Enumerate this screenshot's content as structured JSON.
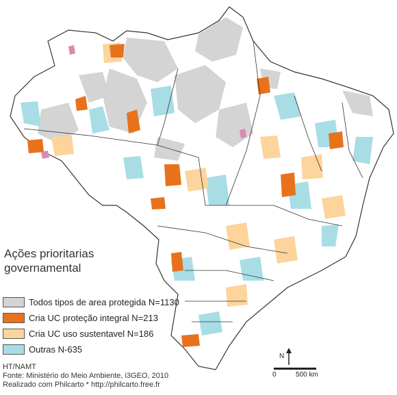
{
  "legend": {
    "title_line1": "Ações prioritarias",
    "title_line2": "governamental",
    "items": [
      {
        "label": "Todos tipos de area protegida N=1130",
        "color": "#d4d4d4"
      },
      {
        "label": "Cria UC proteção integral N=213",
        "color": "#e8721c"
      },
      {
        "label": "Cria UC uso sustentavel N=186",
        "color": "#fcd49c"
      },
      {
        "label": "Outras N-635",
        "color": "#a8dde6"
      }
    ]
  },
  "credits": {
    "line1": "HT/NAMT",
    "line2": "Fonte: Ministério do Meio Ambiente, i3GEO, 2010",
    "line3": "Realizado com Philcarto  * http://philcarto.free.fr"
  },
  "scale": {
    "north_label": "N",
    "zero_label": "0",
    "distance_label": "500 km"
  },
  "colors": {
    "protected": "#d4d4d4",
    "integral": "#e8721c",
    "sustainable": "#fcd49c",
    "other": "#a8dde6",
    "pink": "#d88ab0",
    "border": "#333333"
  }
}
